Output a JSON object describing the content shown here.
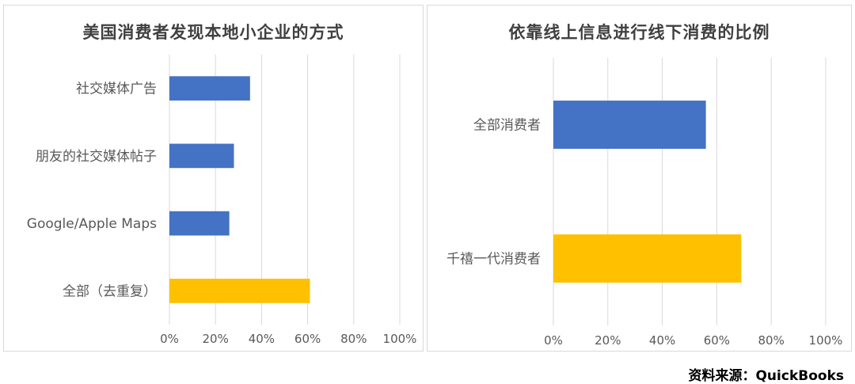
{
  "chart_data": [
    {
      "type": "bar",
      "orientation": "horizontal",
      "title": "美国消费者发现本地小企业的方式",
      "categories": [
        "社交媒体广告",
        "朋友的社交媒体帖子",
        "Google/Apple Maps",
        "全部（去重复）"
      ],
      "values": [
        35,
        28,
        26,
        61
      ],
      "bar_colors": [
        "#4472c4",
        "#4472c4",
        "#4472c4",
        "#ffc000"
      ],
      "xlim": [
        0,
        100
      ],
      "xticks": [
        "0%",
        "20%",
        "40%",
        "60%",
        "80%",
        "100%"
      ],
      "grid": true
    },
    {
      "type": "bar",
      "orientation": "horizontal",
      "title": "依靠线上信息进行线下消费的比例",
      "categories": [
        "全部消费者",
        "千禧一代消费者"
      ],
      "values": [
        56,
        69
      ],
      "bar_colors": [
        "#4472c4",
        "#ffc000"
      ],
      "xlim": [
        0,
        100
      ],
      "xticks": [
        "0%",
        "20%",
        "40%",
        "60%",
        "80%",
        "100%"
      ],
      "grid": true
    }
  ],
  "source": "资料来源：QuickBooks"
}
